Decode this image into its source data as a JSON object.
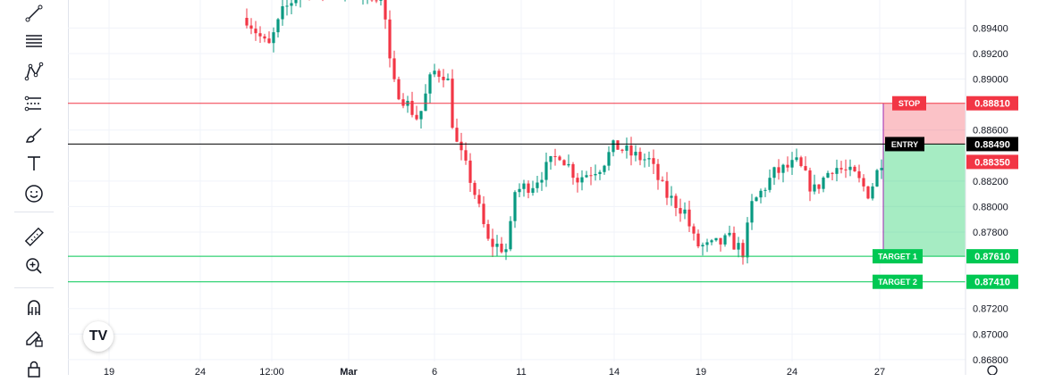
{
  "toolbar": {
    "tools": [
      {
        "name": "trend-line-icon"
      },
      {
        "name": "fib-retracement-icon"
      },
      {
        "name": "pattern-icon"
      },
      {
        "name": "forecast-icon"
      },
      {
        "name": "brush-icon"
      },
      {
        "name": "text-icon"
      },
      {
        "name": "emoji-icon"
      },
      {
        "name": "ruler-icon"
      },
      {
        "name": "zoom-in-icon"
      },
      {
        "name": "magnet-icon"
      },
      {
        "name": "lock-drawing-icon"
      },
      {
        "name": "lock-icon"
      }
    ]
  },
  "chart_data": {
    "type": "candlestick",
    "x_ticks": [
      "19",
      "24",
      "12:00",
      "Mar",
      "6",
      "11",
      "14",
      "19",
      "24",
      "27"
    ],
    "y_ticks": [
      "0.89400",
      "0.89200",
      "0.89000",
      "0.88600",
      "0.88200",
      "0.88000",
      "0.87800",
      "0.87200",
      "0.87000",
      "0.86800"
    ],
    "ylim": [
      0.8668,
      0.8962
    ],
    "levels": [
      {
        "label": "STOP",
        "price": 0.8881,
        "price_label": "0.88810",
        "color": "#f23645"
      },
      {
        "label": "ENTRY",
        "price": 0.8849,
        "price_label": "0.88490",
        "color": "#000000"
      },
      {
        "label": "",
        "price": 0.8835,
        "price_label": "0.88350",
        "color": "#f23645"
      },
      {
        "label": "TARGET 1",
        "price": 0.8761,
        "price_label": "0.87610",
        "color": "#00c853"
      },
      {
        "label": "TARGET 2",
        "price": 0.8741,
        "price_label": "0.87410",
        "color": "#00c853"
      }
    ],
    "colors": {
      "up": "#089981",
      "down": "#f23645"
    }
  },
  "logo": {
    "text": "TV"
  }
}
